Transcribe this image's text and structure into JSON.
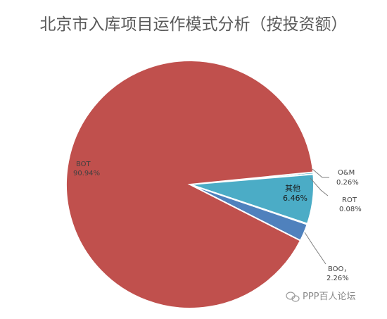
{
  "chart_data": {
    "type": "pie",
    "title": "北京市入库项目运作模式分析（按投资额）",
    "slices": [
      {
        "name": "BOT",
        "value_label": "90.94%",
        "value": 90.94,
        "color": "#c0504d"
      },
      {
        "name": "O&M",
        "value_label": "0.26%",
        "value": 0.26,
        "color": "#4bacc6"
      },
      {
        "name": "其他",
        "value_label": "6.46%",
        "value": 6.46,
        "color": "#4bacc6"
      },
      {
        "name": "ROT",
        "value_label": "0.08%",
        "value": 0.08,
        "color": "#8064a2"
      },
      {
        "name": "BOO，",
        "value_label": "2.26%",
        "value": 2.26,
        "color": "#4f81bd"
      }
    ]
  },
  "watermark": {
    "text": "PPP百人论坛",
    "icon": "wechat-icon"
  }
}
